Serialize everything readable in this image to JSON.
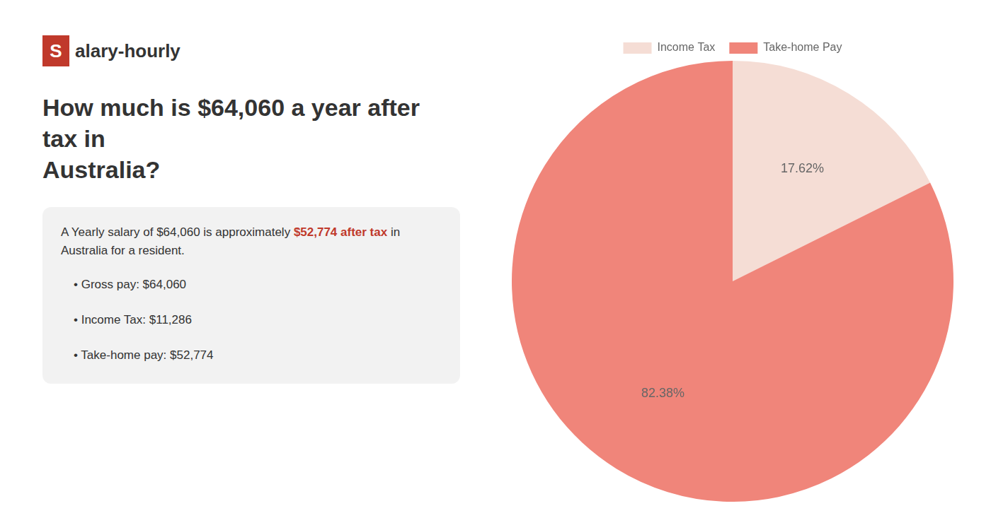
{
  "chart_data": {
    "type": "pie",
    "categories": [
      "Income Tax",
      "Take-home Pay"
    ],
    "values": [
      17.62,
      82.38
    ],
    "value_labels": [
      "17.62%",
      "82.38%"
    ],
    "colors": [
      "#f5ddd5",
      "#f0857a"
    ],
    "data_labels": true,
    "legend": "top",
    "title": "How much is $64,060 a year after tax in\nAustralia?",
    "annotations": [
      {
        "text": "S",
        "color": "#c0392b"
      },
      {
        "text": "alary-hourly"
      },
      {
        "text": "A Yearly salary of $64,060 is approximately "
      },
      {
        "text": "$52,774 after tax",
        "color": "#c0392b"
      },
      {
        "text": " in"
      },
      {
        "text": "Australia for a resident."
      },
      {
        "text": "•  Gross pay: $64,060"
      },
      {
        "text": "•  Income Tax: $11,286"
      },
      {
        "text": "•  Take-home pay: $52,774"
      }
    ]
  }
}
